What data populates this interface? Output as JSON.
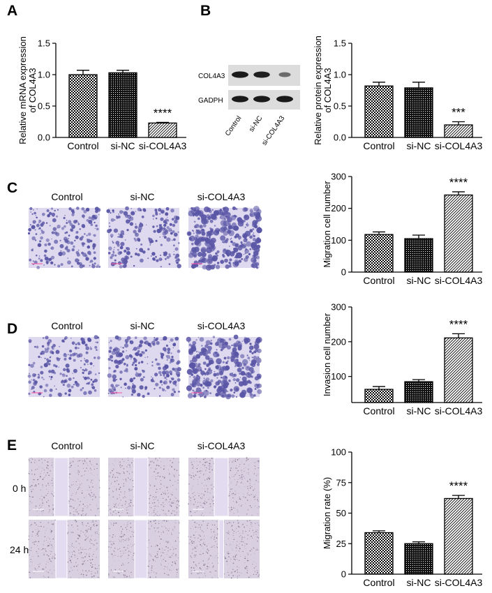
{
  "panels": {
    "A": "A",
    "B": "B",
    "C": "C",
    "D": "D",
    "E": "E"
  },
  "western_blot": {
    "rows": [
      "COL4A3",
      "GADPH"
    ],
    "lanes": [
      "Control",
      "si-NC",
      "si-COL4A3"
    ],
    "band_intensity": {
      "COL4A3": [
        1.0,
        0.95,
        0.35
      ],
      "GADPH": [
        1.0,
        1.0,
        1.0
      ]
    }
  },
  "micrographs": {
    "C": {
      "labels": [
        "Control",
        "si-NC",
        "si-COL4A3"
      ],
      "density": [
        0.45,
        0.5,
        0.95
      ]
    },
    "D": {
      "labels": [
        "Control",
        "si-NC",
        "si-COL4A3"
      ],
      "density": [
        0.45,
        0.55,
        0.9
      ]
    },
    "E": {
      "labels": [
        "Control",
        "si-NC",
        "si-COL4A3"
      ],
      "time_labels": [
        "0 h",
        "24 h"
      ],
      "gap_open": [
        [
          1.0,
          1.0,
          1.0
        ],
        [
          0.8,
          0.9,
          0.35
        ]
      ]
    }
  },
  "colors": {
    "stain": "#5a56a6",
    "background_transwell": "#ded9ee",
    "wound_bg": "#d8cfe0",
    "gap": "#e3dcf1"
  },
  "chart_data": [
    {
      "id": "A",
      "type": "bar",
      "categories": [
        "Control",
        "si-NC",
        "si-COL4A3"
      ],
      "values": [
        1.0,
        1.03,
        0.23
      ],
      "errors": [
        0.07,
        0.04,
        0.01
      ],
      "patterns": [
        "check",
        "dense",
        "diag"
      ],
      "significance": [
        "",
        "",
        "****"
      ],
      "ylabel": [
        "Relative mRNA expression",
        "of COL4A3"
      ],
      "ylim": [
        0,
        1.5
      ],
      "yticks": [
        "0.0",
        "0.5",
        "1.0",
        "1.5"
      ]
    },
    {
      "id": "B",
      "type": "bar",
      "categories": [
        "Control",
        "si-NC",
        "si-COL4A3"
      ],
      "values": [
        0.82,
        0.79,
        0.2
      ],
      "errors": [
        0.06,
        0.09,
        0.05
      ],
      "patterns": [
        "check",
        "dense",
        "diag"
      ],
      "significance": [
        "",
        "",
        "***"
      ],
      "ylabel": [
        "Relative protein expression",
        "of COL4A3"
      ],
      "ylim": [
        0,
        1.5
      ],
      "yticks": [
        "0.0",
        "0.5",
        "1.0",
        "1.5"
      ]
    },
    {
      "id": "C",
      "type": "bar",
      "categories": [
        "Control",
        "si-NC",
        "si-COL4A3"
      ],
      "values": [
        118,
        105,
        242
      ],
      "errors": [
        8,
        11,
        10
      ],
      "patterns": [
        "check",
        "dense",
        "diag"
      ],
      "significance": [
        "",
        "",
        "****"
      ],
      "ylabel": [
        "Migration cell number"
      ],
      "ylim": [
        0,
        300
      ],
      "yticks": [
        "0",
        "100",
        "200",
        "300"
      ]
    },
    {
      "id": "D",
      "type": "bar",
      "categories": [
        "Control",
        "si-NC",
        "si-COL4A3"
      ],
      "values": [
        63,
        85,
        211
      ],
      "errors": [
        8,
        6,
        12
      ],
      "patterns": [
        "check",
        "dense",
        "diag"
      ],
      "significance": [
        "",
        "",
        "****"
      ],
      "ylabel": [
        "Invasion cell number"
      ],
      "ylim": [
        25,
        300
      ],
      "yticks": [
        "100",
        "200",
        "300"
      ],
      "ytick_values": [
        100,
        200,
        300
      ]
    },
    {
      "id": "E",
      "type": "bar",
      "categories": [
        "Control",
        "si-NC",
        "si-COL4A3"
      ],
      "values": [
        34,
        25,
        62
      ],
      "errors": [
        1.5,
        1.5,
        2.5
      ],
      "patterns": [
        "check",
        "dense",
        "diag"
      ],
      "significance": [
        "",
        "",
        "****"
      ],
      "ylabel": [
        "Migration rate (%)"
      ],
      "ylim": [
        0,
        100
      ],
      "yticks": [
        "0",
        "25",
        "50",
        "75",
        "100"
      ]
    }
  ]
}
